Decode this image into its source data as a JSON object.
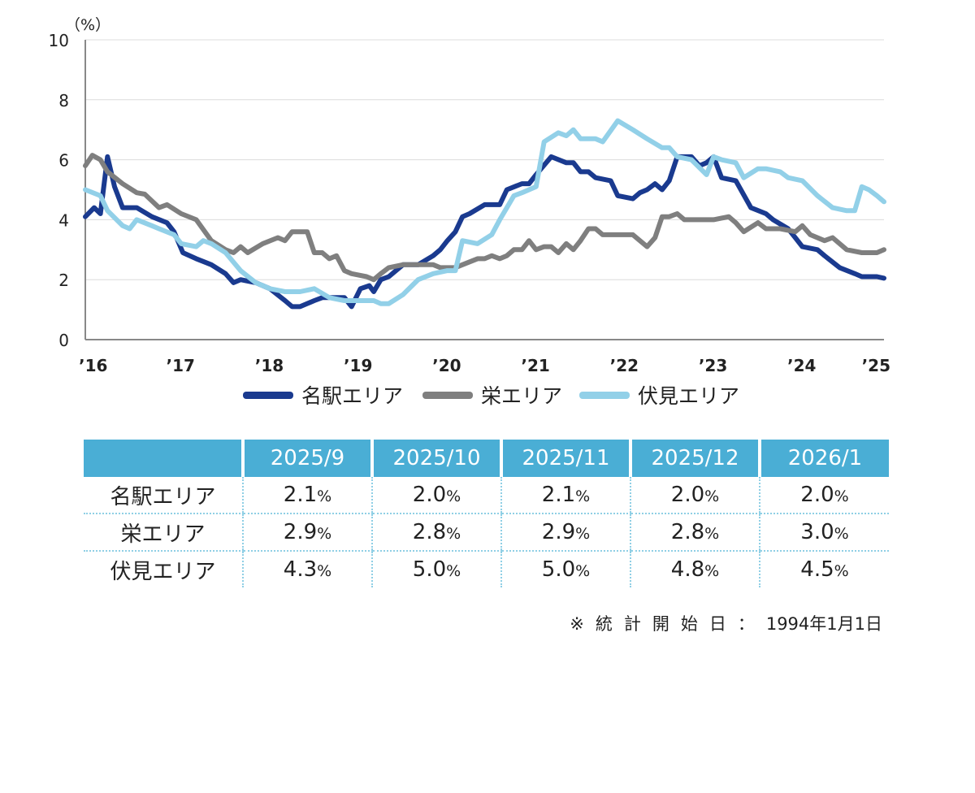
{
  "chart_data": {
    "type": "line",
    "unit_label": "（%）",
    "ylim": [
      0,
      10
    ],
    "y_ticks": [
      0,
      2,
      4,
      6,
      8,
      10
    ],
    "xlim": [
      2016,
      2025
    ],
    "x_ticks": [
      {
        "value": 2016,
        "label": "’16"
      },
      {
        "value": 2017,
        "label": "’17"
      },
      {
        "value": 2018,
        "label": "’18"
      },
      {
        "value": 2019,
        "label": "’19"
      },
      {
        "value": 2020,
        "label": "’20"
      },
      {
        "value": 2021,
        "label": "’21"
      },
      {
        "value": 2022,
        "label": "’22"
      },
      {
        "value": 2023,
        "label": "’23"
      },
      {
        "value": 2024,
        "label": "’24"
      },
      {
        "value": 2025,
        "label": "’25"
      }
    ],
    "grid": "horizontal",
    "legend_position": "bottom",
    "series": [
      {
        "name": "名駅エリア",
        "color": "#1a3a8f",
        "points": [
          [
            2016.0,
            4.1
          ],
          [
            2016.1,
            4.4
          ],
          [
            2016.17,
            4.2
          ],
          [
            2016.25,
            6.1
          ],
          [
            2016.33,
            5.1
          ],
          [
            2016.42,
            4.4
          ],
          [
            2016.58,
            4.4
          ],
          [
            2016.75,
            4.1
          ],
          [
            2016.92,
            3.9
          ],
          [
            2017.0,
            3.6
          ],
          [
            2017.1,
            2.9
          ],
          [
            2017.25,
            2.7
          ],
          [
            2017.42,
            2.5
          ],
          [
            2017.58,
            2.2
          ],
          [
            2017.67,
            1.9
          ],
          [
            2017.75,
            2.0
          ],
          [
            2017.92,
            1.9
          ],
          [
            2018.08,
            1.7
          ],
          [
            2018.25,
            1.3
          ],
          [
            2018.33,
            1.1
          ],
          [
            2018.42,
            1.1
          ],
          [
            2018.58,
            1.3
          ],
          [
            2018.67,
            1.4
          ],
          [
            2018.75,
            1.4
          ],
          [
            2018.92,
            1.4
          ],
          [
            2019.0,
            1.1
          ],
          [
            2019.1,
            1.7
          ],
          [
            2019.2,
            1.8
          ],
          [
            2019.25,
            1.6
          ],
          [
            2019.33,
            2.0
          ],
          [
            2019.42,
            2.1
          ],
          [
            2019.58,
            2.5
          ],
          [
            2019.75,
            2.5
          ],
          [
            2019.92,
            2.8
          ],
          [
            2020.0,
            3.0
          ],
          [
            2020.08,
            3.3
          ],
          [
            2020.17,
            3.6
          ],
          [
            2020.25,
            4.1
          ],
          [
            2020.33,
            4.2
          ],
          [
            2020.5,
            4.5
          ],
          [
            2020.67,
            4.5
          ],
          [
            2020.75,
            5.0
          ],
          [
            2020.92,
            5.2
          ],
          [
            2021.0,
            5.2
          ],
          [
            2021.08,
            5.5
          ],
          [
            2021.25,
            6.1
          ],
          [
            2021.42,
            5.9
          ],
          [
            2021.5,
            5.9
          ],
          [
            2021.58,
            5.6
          ],
          [
            2021.67,
            5.6
          ],
          [
            2021.75,
            5.4
          ],
          [
            2021.92,
            5.3
          ],
          [
            2022.0,
            4.8
          ],
          [
            2022.17,
            4.7
          ],
          [
            2022.25,
            4.9
          ],
          [
            2022.33,
            5.0
          ],
          [
            2022.42,
            5.2
          ],
          [
            2022.5,
            5.0
          ],
          [
            2022.58,
            5.3
          ],
          [
            2022.67,
            6.1
          ],
          [
            2022.83,
            6.1
          ],
          [
            2022.92,
            5.8
          ],
          [
            2023.0,
            5.9
          ],
          [
            2023.08,
            6.1
          ],
          [
            2023.17,
            5.4
          ],
          [
            2023.33,
            5.3
          ],
          [
            2023.5,
            4.4
          ],
          [
            2023.67,
            4.2
          ],
          [
            2023.75,
            4.0
          ],
          [
            2023.92,
            3.7
          ],
          [
            2024.0,
            3.4
          ],
          [
            2024.08,
            3.1
          ],
          [
            2024.25,
            3.0
          ],
          [
            2024.33,
            2.8
          ],
          [
            2024.5,
            2.4
          ],
          [
            2024.67,
            2.2
          ],
          [
            2024.75,
            2.1
          ],
          [
            2024.92,
            2.1
          ],
          [
            2025.0,
            2.05
          ]
        ]
      },
      {
        "name": "栄エリア",
        "color": "#7f7f7f",
        "points": [
          [
            2016.0,
            5.8
          ],
          [
            2016.08,
            6.15
          ],
          [
            2016.17,
            6.0
          ],
          [
            2016.25,
            5.6
          ],
          [
            2016.42,
            5.2
          ],
          [
            2016.58,
            4.9
          ],
          [
            2016.67,
            4.85
          ],
          [
            2016.83,
            4.4
          ],
          [
            2016.92,
            4.5
          ],
          [
            2017.08,
            4.2
          ],
          [
            2017.25,
            4.0
          ],
          [
            2017.42,
            3.3
          ],
          [
            2017.58,
            3.0
          ],
          [
            2017.67,
            2.9
          ],
          [
            2017.75,
            3.1
          ],
          [
            2017.83,
            2.9
          ],
          [
            2018.0,
            3.2
          ],
          [
            2018.17,
            3.4
          ],
          [
            2018.25,
            3.3
          ],
          [
            2018.33,
            3.6
          ],
          [
            2018.5,
            3.6
          ],
          [
            2018.58,
            2.9
          ],
          [
            2018.67,
            2.9
          ],
          [
            2018.75,
            2.7
          ],
          [
            2018.83,
            2.8
          ],
          [
            2018.92,
            2.3
          ],
          [
            2019.0,
            2.2
          ],
          [
            2019.17,
            2.1
          ],
          [
            2019.25,
            2.0
          ],
          [
            2019.33,
            2.2
          ],
          [
            2019.42,
            2.4
          ],
          [
            2019.58,
            2.5
          ],
          [
            2019.75,
            2.5
          ],
          [
            2019.92,
            2.5
          ],
          [
            2020.0,
            2.4
          ],
          [
            2020.17,
            2.4
          ],
          [
            2020.25,
            2.5
          ],
          [
            2020.42,
            2.7
          ],
          [
            2020.5,
            2.7
          ],
          [
            2020.58,
            2.8
          ],
          [
            2020.67,
            2.7
          ],
          [
            2020.75,
            2.8
          ],
          [
            2020.83,
            3.0
          ],
          [
            2020.92,
            3.0
          ],
          [
            2021.0,
            3.3
          ],
          [
            2021.08,
            3.0
          ],
          [
            2021.17,
            3.1
          ],
          [
            2021.25,
            3.1
          ],
          [
            2021.33,
            2.9
          ],
          [
            2021.42,
            3.2
          ],
          [
            2021.5,
            3.0
          ],
          [
            2021.58,
            3.3
          ],
          [
            2021.67,
            3.7
          ],
          [
            2021.75,
            3.7
          ],
          [
            2021.83,
            3.5
          ],
          [
            2022.0,
            3.5
          ],
          [
            2022.17,
            3.5
          ],
          [
            2022.33,
            3.1
          ],
          [
            2022.42,
            3.4
          ],
          [
            2022.5,
            4.1
          ],
          [
            2022.58,
            4.1
          ],
          [
            2022.67,
            4.2
          ],
          [
            2022.75,
            4.0
          ],
          [
            2022.92,
            4.0
          ],
          [
            2023.08,
            4.0
          ],
          [
            2023.25,
            4.1
          ],
          [
            2023.33,
            3.9
          ],
          [
            2023.42,
            3.6
          ],
          [
            2023.58,
            3.9
          ],
          [
            2023.67,
            3.7
          ],
          [
            2023.83,
            3.7
          ],
          [
            2024.0,
            3.6
          ],
          [
            2024.08,
            3.8
          ],
          [
            2024.17,
            3.5
          ],
          [
            2024.33,
            3.3
          ],
          [
            2024.42,
            3.4
          ],
          [
            2024.58,
            3.0
          ],
          [
            2024.75,
            2.9
          ],
          [
            2024.92,
            2.9
          ],
          [
            2025.0,
            3.0
          ]
        ]
      },
      {
        "name": "伏見エリア",
        "color": "#92d0e8",
        "points": [
          [
            2016.0,
            5.0
          ],
          [
            2016.17,
            4.8
          ],
          [
            2016.25,
            4.3
          ],
          [
            2016.42,
            3.8
          ],
          [
            2016.5,
            3.7
          ],
          [
            2016.58,
            4.0
          ],
          [
            2016.75,
            3.8
          ],
          [
            2016.83,
            3.7
          ],
          [
            2017.0,
            3.5
          ],
          [
            2017.08,
            3.2
          ],
          [
            2017.25,
            3.1
          ],
          [
            2017.33,
            3.3
          ],
          [
            2017.42,
            3.2
          ],
          [
            2017.58,
            2.9
          ],
          [
            2017.75,
            2.3
          ],
          [
            2017.92,
            1.9
          ],
          [
            2018.08,
            1.7
          ],
          [
            2018.25,
            1.6
          ],
          [
            2018.42,
            1.6
          ],
          [
            2018.58,
            1.7
          ],
          [
            2018.75,
            1.4
          ],
          [
            2018.92,
            1.3
          ],
          [
            2019.08,
            1.3
          ],
          [
            2019.25,
            1.3
          ],
          [
            2019.33,
            1.2
          ],
          [
            2019.42,
            1.2
          ],
          [
            2019.58,
            1.5
          ],
          [
            2019.75,
            2.0
          ],
          [
            2019.92,
            2.2
          ],
          [
            2020.08,
            2.3
          ],
          [
            2020.17,
            2.3
          ],
          [
            2020.25,
            3.3
          ],
          [
            2020.42,
            3.2
          ],
          [
            2020.58,
            3.5
          ],
          [
            2020.67,
            4.0
          ],
          [
            2020.83,
            4.8
          ],
          [
            2020.92,
            4.9
          ],
          [
            2021.08,
            5.1
          ],
          [
            2021.17,
            6.6
          ],
          [
            2021.33,
            6.9
          ],
          [
            2021.42,
            6.8
          ],
          [
            2021.5,
            7.0
          ],
          [
            2021.58,
            6.7
          ],
          [
            2021.75,
            6.7
          ],
          [
            2021.83,
            6.6
          ],
          [
            2022.0,
            7.3
          ],
          [
            2022.17,
            7.0
          ],
          [
            2022.33,
            6.7
          ],
          [
            2022.5,
            6.4
          ],
          [
            2022.58,
            6.4
          ],
          [
            2022.67,
            6.1
          ],
          [
            2022.83,
            6.0
          ],
          [
            2023.0,
            5.5
          ],
          [
            2023.08,
            6.1
          ],
          [
            2023.17,
            6.0
          ],
          [
            2023.33,
            5.9
          ],
          [
            2023.42,
            5.4
          ],
          [
            2023.58,
            5.7
          ],
          [
            2023.67,
            5.7
          ],
          [
            2023.83,
            5.6
          ],
          [
            2023.92,
            5.4
          ],
          [
            2024.08,
            5.3
          ],
          [
            2024.25,
            4.8
          ],
          [
            2024.42,
            4.4
          ],
          [
            2024.58,
            4.3
          ],
          [
            2024.67,
            4.3
          ],
          [
            2024.75,
            5.1
          ],
          [
            2024.83,
            5.0
          ],
          [
            2024.92,
            4.8
          ],
          [
            2025.0,
            4.6
          ]
        ]
      }
    ]
  },
  "table": {
    "headers": [
      "",
      "2025/9",
      "2025/10",
      "2025/11",
      "2025/12",
      "2026/1"
    ],
    "rows": [
      {
        "label": "名駅エリア",
        "values": [
          "2.1",
          "2.0",
          "2.1",
          "2.0",
          "2.0"
        ]
      },
      {
        "label": "栄エリア",
        "values": [
          "2.9",
          "2.8",
          "2.9",
          "2.8",
          "3.0"
        ]
      },
      {
        "label": "伏見エリア",
        "values": [
          "4.3",
          "5.0",
          "5.0",
          "4.8",
          "4.5"
        ]
      }
    ],
    "unit": "%"
  },
  "note": {
    "label": "※統計開始日：",
    "value": "1994年1月1日"
  },
  "colors": {
    "header_bg": "#4aaed5",
    "row_divider": "#8fcfe5"
  }
}
